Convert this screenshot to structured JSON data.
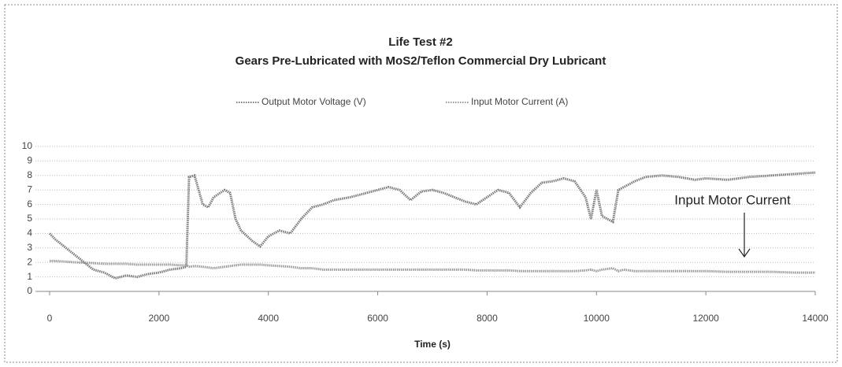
{
  "chart_data": {
    "type": "line",
    "title": "Life Test #2",
    "subtitle": "Gears Pre-Lubricated with MoS2/Teflon Commercial Dry Lubricant",
    "x_label": "Time (s)",
    "annotation": "Input Motor Current",
    "x": [
      0,
      100,
      300,
      500,
      800,
      1000,
      1200,
      1400,
      1600,
      1800,
      2000,
      2200,
      2400,
      2500,
      2550,
      2650,
      2800,
      2900,
      3000,
      3200,
      3300,
      3400,
      3500,
      3700,
      3850,
      4000,
      4200,
      4400,
      4600,
      4800,
      5000,
      5200,
      5500,
      5800,
      6000,
      6200,
      6400,
      6600,
      6800,
      7000,
      7200,
      7400,
      7600,
      7800,
      8000,
      8200,
      8400,
      8600,
      8800,
      9000,
      9200,
      9400,
      9600,
      9800,
      9900,
      10000,
      10100,
      10300,
      10400,
      10500,
      10700,
      10900,
      11200,
      11500,
      11800,
      12000,
      12400,
      12800,
      13200,
      13600,
      14000
    ],
    "series": [
      {
        "name": "Output Motor Voltage (V)",
        "color": "#7a7a7a",
        "values": [
          4.0,
          3.6,
          3.0,
          2.4,
          1.5,
          1.3,
          0.9,
          1.1,
          1.0,
          1.2,
          1.3,
          1.5,
          1.6,
          1.7,
          7.9,
          8.0,
          6.0,
          5.8,
          6.5,
          7.0,
          6.8,
          5.0,
          4.2,
          3.5,
          3.1,
          3.8,
          4.2,
          4.0,
          5.0,
          5.8,
          6.0,
          6.3,
          6.5,
          6.8,
          7.0,
          7.2,
          7.0,
          6.3,
          6.9,
          7.0,
          6.8,
          6.5,
          6.2,
          6.0,
          6.5,
          7.0,
          6.8,
          5.8,
          6.8,
          7.5,
          7.6,
          7.8,
          7.6,
          6.5,
          5.0,
          7.0,
          5.2,
          4.8,
          7.0,
          7.2,
          7.6,
          7.9,
          8.0,
          7.9,
          7.7,
          7.8,
          7.7,
          7.9,
          8.0,
          8.1,
          8.2
        ]
      },
      {
        "name": "Input Motor Current (A)",
        "color": "#999999",
        "values": [
          2.1,
          2.1,
          2.05,
          2.0,
          1.95,
          1.9,
          1.9,
          1.9,
          1.85,
          1.85,
          1.85,
          1.85,
          1.8,
          1.8,
          1.7,
          1.75,
          1.7,
          1.65,
          1.6,
          1.7,
          1.75,
          1.8,
          1.85,
          1.85,
          1.85,
          1.8,
          1.75,
          1.7,
          1.6,
          1.6,
          1.5,
          1.5,
          1.5,
          1.5,
          1.5,
          1.5,
          1.5,
          1.5,
          1.5,
          1.5,
          1.5,
          1.5,
          1.5,
          1.45,
          1.45,
          1.45,
          1.45,
          1.4,
          1.4,
          1.4,
          1.4,
          1.4,
          1.4,
          1.45,
          1.5,
          1.4,
          1.5,
          1.6,
          1.4,
          1.5,
          1.4,
          1.4,
          1.4,
          1.4,
          1.4,
          1.4,
          1.35,
          1.35,
          1.35,
          1.3,
          1.3
        ]
      }
    ],
    "xlim": [
      0,
      14000
    ],
    "xticks": [
      0,
      2000,
      4000,
      6000,
      8000,
      10000,
      12000,
      14000
    ],
    "ylim": [
      0,
      10
    ],
    "yticks": [
      0,
      1,
      2,
      3,
      4,
      5,
      6,
      7,
      8,
      9,
      10
    ],
    "grid": true,
    "legend": "top"
  }
}
